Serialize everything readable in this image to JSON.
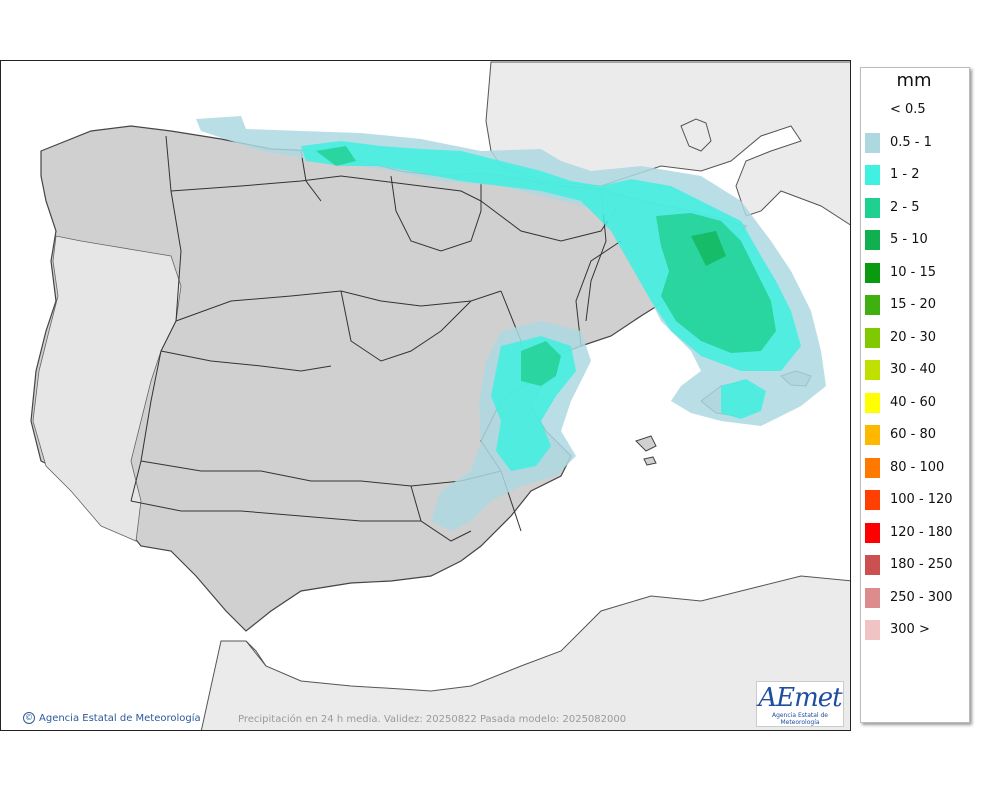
{
  "map": {
    "credit": "Agencia Estatal de Meteorología",
    "footnote": "Precipitación en 24 h media. Validez: 20250822 Pasada modelo: 2025082000",
    "logo_text": "AEmet",
    "logo_subtitle": "Agencia Estatal de Meteorología",
    "colors": {
      "sea": "#ffffff",
      "land_background": "#ebebeb",
      "terrain": "#cfcfcf",
      "borders": "#333333"
    }
  },
  "legend": {
    "unit": "mm",
    "items": [
      {
        "label": "< 0.5",
        "color": null
      },
      {
        "label": "0.5 - 1",
        "color": "#add8e0"
      },
      {
        "label": "1 - 2",
        "color": "#40f0e0"
      },
      {
        "label": "2 - 5",
        "color": "#20d090"
      },
      {
        "label": "5 - 10",
        "color": "#10b050"
      },
      {
        "label": "10 - 15",
        "color": "#0a9a10"
      },
      {
        "label": "15 - 20",
        "color": "#40b010"
      },
      {
        "label": "20 - 30",
        "color": "#80c800"
      },
      {
        "label": "30 - 40",
        "color": "#c0e000"
      },
      {
        "label": "40 - 60",
        "color": "#ffff00"
      },
      {
        "label": "60 - 80",
        "color": "#ffb800"
      },
      {
        "label": "80 - 100",
        "color": "#ff7800"
      },
      {
        "label": "100 - 120",
        "color": "#ff4000"
      },
      {
        "label": "120 - 180",
        "color": "#ff0000"
      },
      {
        "label": "180 - 250",
        "color": "#cc5050"
      },
      {
        "label": "250 - 300",
        "color": "#dc8c8c"
      },
      {
        "label": "300 >",
        "color": "#f0c4c4"
      }
    ]
  }
}
